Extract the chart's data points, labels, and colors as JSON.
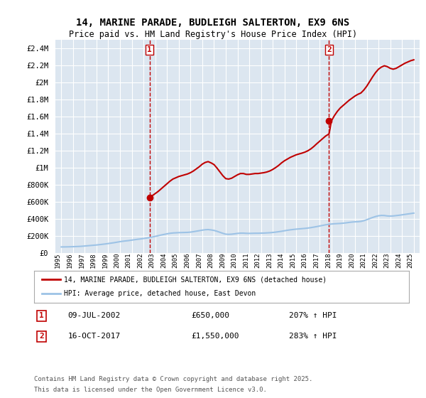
{
  "title_line1": "14, MARINE PARADE, BUDLEIGH SALTERTON, EX9 6NS",
  "title_line2": "Price paid vs. HM Land Registry's House Price Index (HPI)",
  "ylabel": "",
  "background_color": "#ffffff",
  "plot_bg_color": "#dce6f0",
  "grid_color": "#ffffff",
  "red_color": "#c00000",
  "blue_color": "#9dc3e6",
  "sale1_date_x": 2002.52,
  "sale1_price": 650000,
  "sale1_label": "1",
  "sale2_date_x": 2017.79,
  "sale2_price": 1550000,
  "sale2_label": "2",
  "ylim_top": 2500000,
  "yticks": [
    0,
    200000,
    400000,
    600000,
    800000,
    1000000,
    1200000,
    1400000,
    1600000,
    1800000,
    2000000,
    2200000,
    2400000
  ],
  "ytick_labels": [
    "£0",
    "£200K",
    "£400K",
    "£600K",
    "£800K",
    "£1M",
    "£1.2M",
    "£1.4M",
    "£1.6M",
    "£1.8M",
    "£2M",
    "£2.2M",
    "£2.4M"
  ],
  "xlim_left": 1994.5,
  "xlim_right": 2025.5,
  "xticks": [
    1995,
    1996,
    1997,
    1998,
    1999,
    2000,
    2001,
    2002,
    2003,
    2004,
    2005,
    2006,
    2007,
    2008,
    2009,
    2010,
    2011,
    2012,
    2013,
    2014,
    2015,
    2016,
    2017,
    2018,
    2019,
    2020,
    2021,
    2022,
    2023,
    2024,
    2025
  ],
  "legend_line1": "14, MARINE PARADE, BUDLEIGH SALTERTON, EX9 6NS (detached house)",
  "legend_line2": "HPI: Average price, detached house, East Devon",
  "footnote_line1": "Contains HM Land Registry data © Crown copyright and database right 2025.",
  "footnote_line2": "This data is licensed under the Open Government Licence v3.0.",
  "annot1_date": "09-JUL-2002",
  "annot1_price": "£650,000",
  "annot1_hpi": "207% ↑ HPI",
  "annot2_date": "16-OCT-2017",
  "annot2_price": "£1,550,000",
  "annot2_hpi": "283% ↑ HPI",
  "hpi_data_x": [
    1995.0,
    1995.25,
    1995.5,
    1995.75,
    1996.0,
    1996.25,
    1996.5,
    1996.75,
    1997.0,
    1997.25,
    1997.5,
    1997.75,
    1998.0,
    1998.25,
    1998.5,
    1998.75,
    1999.0,
    1999.25,
    1999.5,
    1999.75,
    2000.0,
    2000.25,
    2000.5,
    2000.75,
    2001.0,
    2001.25,
    2001.5,
    2001.75,
    2002.0,
    2002.25,
    2002.5,
    2002.75,
    2003.0,
    2003.25,
    2003.5,
    2003.75,
    2004.0,
    2004.25,
    2004.5,
    2004.75,
    2005.0,
    2005.25,
    2005.5,
    2005.75,
    2006.0,
    2006.25,
    2006.5,
    2006.75,
    2007.0,
    2007.25,
    2007.5,
    2007.75,
    2008.0,
    2008.25,
    2008.5,
    2008.75,
    2009.0,
    2009.25,
    2009.5,
    2009.75,
    2010.0,
    2010.25,
    2010.5,
    2010.75,
    2011.0,
    2011.25,
    2011.5,
    2011.75,
    2012.0,
    2012.25,
    2012.5,
    2012.75,
    2013.0,
    2013.25,
    2013.5,
    2013.75,
    2014.0,
    2014.25,
    2014.5,
    2014.75,
    2015.0,
    2015.25,
    2015.5,
    2015.75,
    2016.0,
    2016.25,
    2016.5,
    2016.75,
    2017.0,
    2017.25,
    2017.5,
    2017.75,
    2018.0,
    2018.25,
    2018.5,
    2018.75,
    2019.0,
    2019.25,
    2019.5,
    2019.75,
    2020.0,
    2020.25,
    2020.5,
    2020.75,
    2021.0,
    2021.25,
    2021.5,
    2021.75,
    2022.0,
    2022.25,
    2022.5,
    2022.75,
    2023.0,
    2023.25,
    2023.5,
    2023.75,
    2024.0,
    2024.25,
    2024.5,
    2024.75,
    2025.0
  ],
  "hpi_data_y": [
    68000,
    68500,
    69000,
    70000,
    71000,
    72500,
    74000,
    76000,
    79000,
    82000,
    85000,
    88000,
    91000,
    95000,
    99000,
    103000,
    108000,
    113000,
    118000,
    124000,
    130000,
    135000,
    139000,
    143000,
    148000,
    153000,
    158000,
    162000,
    167000,
    172000,
    178000,
    185000,
    192000,
    200000,
    208000,
    215000,
    222000,
    228000,
    232000,
    234000,
    236000,
    237000,
    238000,
    239000,
    242000,
    247000,
    253000,
    259000,
    265000,
    270000,
    272000,
    268000,
    262000,
    252000,
    240000,
    228000,
    218000,
    216000,
    218000,
    222000,
    227000,
    230000,
    230000,
    228000,
    227000,
    228000,
    229000,
    229000,
    230000,
    231000,
    233000,
    235000,
    238000,
    242000,
    247000,
    252000,
    258000,
    264000,
    269000,
    273000,
    277000,
    280000,
    283000,
    286000,
    290000,
    295000,
    301000,
    307000,
    314000,
    321000,
    328000,
    333000,
    337000,
    340000,
    342000,
    344000,
    347000,
    351000,
    356000,
    360000,
    363000,
    364000,
    368000,
    376000,
    388000,
    401000,
    414000,
    425000,
    434000,
    438000,
    437000,
    432000,
    430000,
    432000,
    436000,
    440000,
    445000,
    450000,
    455000,
    460000,
    465000
  ],
  "red_data_x": [
    1995.0,
    1995.25,
    1995.5,
    1995.75,
    1996.0,
    1996.25,
    1996.5,
    1996.75,
    1997.0,
    1997.25,
    1997.5,
    1997.75,
    1998.0,
    1998.25,
    1998.5,
    1998.75,
    1999.0,
    1999.25,
    1999.5,
    1999.75,
    2000.0,
    2000.25,
    2000.5,
    2000.75,
    2001.0,
    2001.25,
    2001.5,
    2001.75,
    2002.0,
    2002.25,
    2002.52,
    2002.75,
    2003.0,
    2003.25,
    2003.5,
    2003.75,
    2004.0,
    2004.25,
    2004.5,
    2004.75,
    2005.0,
    2005.25,
    2005.5,
    2005.75,
    2006.0,
    2006.25,
    2006.5,
    2006.75,
    2007.0,
    2007.25,
    2007.5,
    2007.75,
    2008.0,
    2008.25,
    2008.5,
    2008.75,
    2009.0,
    2009.25,
    2009.5,
    2009.75,
    2010.0,
    2010.25,
    2010.5,
    2010.75,
    2011.0,
    2011.25,
    2011.5,
    2011.75,
    2012.0,
    2012.25,
    2012.5,
    2012.75,
    2013.0,
    2013.25,
    2013.5,
    2013.75,
    2014.0,
    2014.25,
    2014.5,
    2014.75,
    2015.0,
    2015.25,
    2015.5,
    2015.75,
    2016.0,
    2016.25,
    2016.5,
    2016.75,
    2017.0,
    2017.25,
    2017.5,
    2017.79,
    2018.0,
    2018.25,
    2018.5,
    2018.75,
    2019.0,
    2019.25,
    2019.5,
    2019.75,
    2020.0,
    2020.25,
    2020.5,
    2020.75,
    2021.0,
    2021.25,
    2021.5,
    2021.75,
    2022.0,
    2022.25,
    2022.5,
    2022.75,
    2023.0,
    2023.25,
    2023.5,
    2023.75,
    2024.0,
    2024.25,
    2024.5,
    2024.75,
    2025.0
  ],
  "red_data_y": [
    null,
    null,
    null,
    null,
    null,
    null,
    null,
    null,
    null,
    null,
    null,
    null,
    null,
    null,
    null,
    null,
    null,
    null,
    null,
    null,
    null,
    null,
    null,
    null,
    null,
    null,
    null,
    null,
    null,
    null,
    650000,
    670000,
    695000,
    720000,
    750000,
    780000,
    810000,
    840000,
    865000,
    880000,
    895000,
    905000,
    915000,
    925000,
    940000,
    960000,
    985000,
    1010000,
    1040000,
    1060000,
    1070000,
    1055000,
    1035000,
    995000,
    950000,
    905000,
    870000,
    865000,
    875000,
    895000,
    915000,
    930000,
    930000,
    920000,
    920000,
    925000,
    930000,
    930000,
    935000,
    940000,
    948000,
    960000,
    978000,
    1000000,
    1025000,
    1055000,
    1080000,
    1100000,
    1120000,
    1135000,
    1150000,
    1160000,
    1170000,
    1182000,
    1198000,
    1220000,
    1248000,
    1280000,
    1310000,
    1340000,
    1370000,
    1395000,
    1550000,
    1610000,
    1660000,
    1700000,
    1730000,
    1760000,
    1790000,
    1815000,
    1840000,
    1860000,
    1875000,
    1910000,
    1955000,
    2010000,
    2065000,
    2115000,
    2155000,
    2180000,
    2195000,
    2185000,
    2165000,
    2155000,
    2165000,
    2185000,
    2205000,
    2225000,
    2240000,
    2255000,
    2265000,
    2270000
  ]
}
